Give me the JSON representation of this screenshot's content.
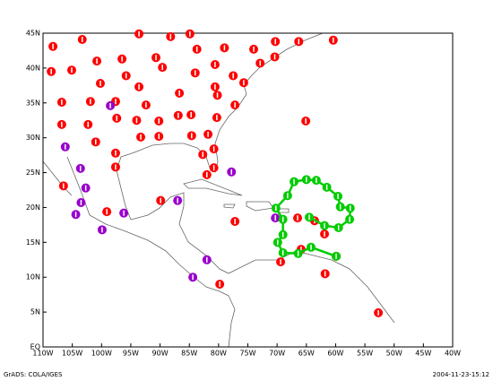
{
  "chart_data": {
    "type": "scatter",
    "xlim": [
      -110,
      -40
    ],
    "ylim": [
      0,
      45
    ],
    "xticks": [
      {
        "value": -110,
        "label": "110W"
      },
      {
        "value": -105,
        "label": "105W"
      },
      {
        "value": -100,
        "label": "100W"
      },
      {
        "value": -95,
        "label": "95W"
      },
      {
        "value": -90,
        "label": "90W"
      },
      {
        "value": -85,
        "label": "85W"
      },
      {
        "value": -80,
        "label": "80W"
      },
      {
        "value": -75,
        "label": "75W"
      },
      {
        "value": -70,
        "label": "70W"
      },
      {
        "value": -65,
        "label": "65W"
      },
      {
        "value": -60,
        "label": "60W"
      },
      {
        "value": -55,
        "label": "55W"
      },
      {
        "value": -50,
        "label": "50W"
      },
      {
        "value": -45,
        "label": "45W"
      },
      {
        "value": -40,
        "label": "40W"
      }
    ],
    "yticks": [
      {
        "value": 0,
        "label": "EQ"
      },
      {
        "value": 5,
        "label": "5N"
      },
      {
        "value": 10,
        "label": "10N"
      },
      {
        "value": 15,
        "label": "15N"
      },
      {
        "value": 20,
        "label": "20N"
      },
      {
        "value": 25,
        "label": "25N"
      },
      {
        "value": 30,
        "label": "30N"
      },
      {
        "value": 35,
        "label": "35N"
      },
      {
        "value": 40,
        "label": "40N"
      },
      {
        "value": 45,
        "label": "45N"
      }
    ],
    "series": [
      {
        "color": "#ff0000",
        "x": [
          -108.3,
          -103.3,
          -93.6,
          -88.2,
          -84.9,
          -108.6,
          -105.1,
          -100.8,
          -96.5,
          -90.7,
          -83.7,
          -79.0,
          -74.0,
          -70.3,
          -66.3,
          -60.4,
          -100.2,
          -95.8,
          -89.6,
          -84.0,
          -80.6,
          -77.5,
          -72.9,
          -70.4,
          -106.8,
          -101.9,
          -97.6,
          -93.6,
          -86.7,
          -80.6,
          -80.2,
          -75.7,
          -92.4,
          -77.2,
          -106.8,
          -102.3,
          -97.4,
          -94.0,
          -90.2,
          -86.9,
          -84.7,
          -80.3,
          -65.1,
          -101.0,
          -93.3,
          -90.2,
          -84.6,
          -81.8,
          -97.6,
          -82.7,
          -80.8,
          -97.6,
          -80.8,
          -82.0,
          -106.5,
          -99.1,
          -89.9,
          -77.2,
          -66.5,
          -63.6,
          -61.9,
          -65.9,
          -69.4,
          -59.9,
          -61.8,
          -79.8,
          -52.7
        ],
        "values": [
          43.1,
          44.1,
          44.9,
          44.5,
          44.9,
          39.5,
          39.7,
          41.0,
          41.3,
          41.5,
          42.7,
          42.9,
          42.7,
          43.8,
          43.8,
          44.0,
          37.8,
          38.9,
          40.1,
          39.3,
          40.5,
          38.9,
          40.7,
          41.6,
          35.1,
          35.2,
          35.2,
          37.3,
          36.4,
          37.3,
          36.1,
          37.9,
          34.7,
          34.7,
          31.9,
          31.9,
          32.8,
          32.5,
          32.4,
          33.2,
          33.3,
          32.9,
          32.4,
          29.4,
          30.1,
          30.2,
          30.3,
          30.5,
          27.8,
          27.6,
          28.4,
          25.8,
          25.7,
          24.7,
          23.1,
          19.4,
          21.0,
          18.0,
          18.5,
          18.1,
          16.2,
          14.0,
          12.2,
          13.0,
          10.5,
          9.0,
          4.9
        ]
      },
      {
        "color": "#9900cc",
        "x": [
          -98.5,
          -106.2,
          -103.6,
          -102.7,
          -103.5,
          -104.4,
          -96.2,
          -87.0,
          -99.9,
          -77.8,
          -70.3,
          -82.0,
          -84.4
        ],
        "values": [
          34.6,
          28.7,
          25.6,
          22.8,
          20.7,
          19.0,
          19.2,
          21.0,
          16.8,
          25.1,
          18.5,
          12.5,
          10.0
        ]
      },
      {
        "color": "#00cc00",
        "type": "line",
        "x": [
          -59.9,
          -64.2,
          -66.4,
          -69.0,
          -69.9,
          -69.0,
          -69.0,
          -70.2,
          -68.2,
          -67.1,
          -65.0,
          -63.3,
          -61.5,
          -59.6,
          -59.2,
          -57.5,
          -57.6,
          -59.5,
          -61.9,
          -64.5
        ],
        "values": [
          13.0,
          14.3,
          13.4,
          13.5,
          15.0,
          16.1,
          18.3,
          19.9,
          21.7,
          23.7,
          24.0,
          23.9,
          22.9,
          21.6,
          20.1,
          19.9,
          18.3,
          17.1,
          17.4,
          18.6
        ]
      }
    ],
    "footer_left": "GrADS: COLA/IGES",
    "footer_right": "2004-11-23-15:12"
  }
}
